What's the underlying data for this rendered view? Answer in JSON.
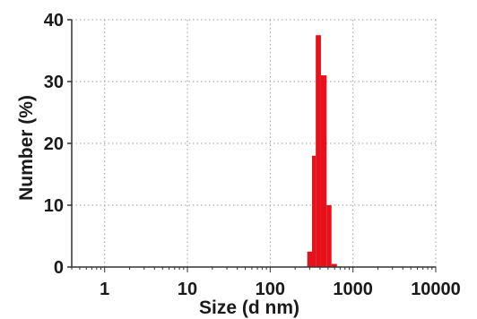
{
  "chart_data": {
    "type": "bar",
    "xlabel": "Size (d nm)",
    "ylabel": "Number (%)",
    "x_scale": "log",
    "xlim": [
      0.4,
      10000
    ],
    "ylim": [
      0,
      40
    ],
    "x_ticks": [
      1,
      10,
      100,
      1000,
      10000
    ],
    "x_tick_labels": [
      "1",
      "10",
      "100",
      "1000",
      "10000"
    ],
    "y_ticks": [
      0,
      10,
      20,
      30,
      40
    ],
    "y_tick_labels": [
      "0",
      "10",
      "20",
      "30",
      "40"
    ],
    "grid": true,
    "bar_color": "#e8101a",
    "bins": [
      {
        "x0": 280,
        "x1": 320,
        "value": 2.5
      },
      {
        "x0": 320,
        "x1": 355,
        "value": 18
      },
      {
        "x0": 355,
        "x1": 410,
        "value": 37.5
      },
      {
        "x0": 410,
        "x1": 480,
        "value": 31
      },
      {
        "x0": 480,
        "x1": 550,
        "value": 10
      },
      {
        "x0": 550,
        "x1": 640,
        "value": 0.5
      }
    ]
  }
}
